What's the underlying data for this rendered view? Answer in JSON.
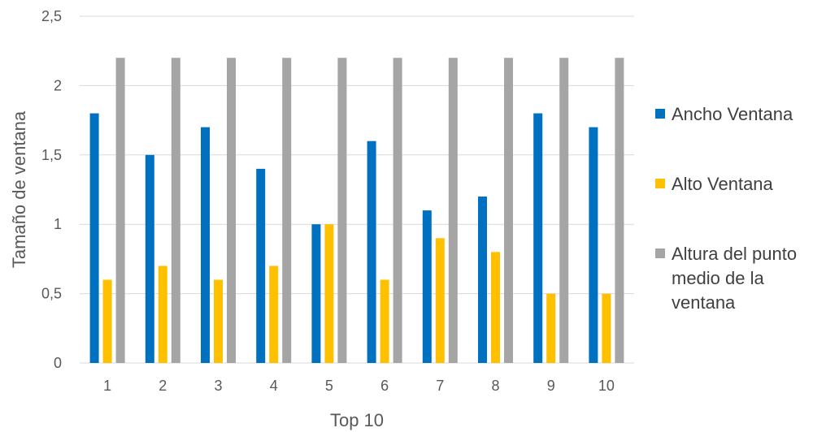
{
  "chart_data": {
    "type": "bar",
    "title": "",
    "xlabel": "Top 10",
    "ylabel": "Tamaño de ventana",
    "categories": [
      "1",
      "2",
      "3",
      "4",
      "5",
      "6",
      "7",
      "8",
      "9",
      "10"
    ],
    "ylim": [
      0,
      2.5
    ],
    "yticks": [
      "0",
      "0,5",
      "1",
      "1,5",
      "2",
      "2,5"
    ],
    "ytick_values": [
      0,
      0.5,
      1,
      1.5,
      2,
      2.5
    ],
    "grid": true,
    "legend_position": "right",
    "series": [
      {
        "name": "Ancho Ventana",
        "color": "#0070C0",
        "values": [
          1.8,
          1.5,
          1.7,
          1.4,
          1.0,
          1.6,
          1.1,
          1.2,
          1.8,
          1.7
        ]
      },
      {
        "name": "Alto Ventana",
        "color": "#FFC000",
        "values": [
          0.6,
          0.7,
          0.6,
          0.7,
          1.0,
          0.6,
          0.9,
          0.8,
          0.5,
          0.5
        ]
      },
      {
        "name": "Altura del punto medio de la ventana",
        "color": "#A5A5A5",
        "values": [
          2.2,
          2.2,
          2.2,
          2.2,
          2.2,
          2.2,
          2.2,
          2.2,
          2.2,
          2.2
        ]
      }
    ],
    "legend_lines": [
      [
        "Ancho Ventana"
      ],
      [
        "Alto Ventana"
      ],
      [
        "Altura del punto",
        "medio de la",
        "ventana"
      ]
    ]
  }
}
